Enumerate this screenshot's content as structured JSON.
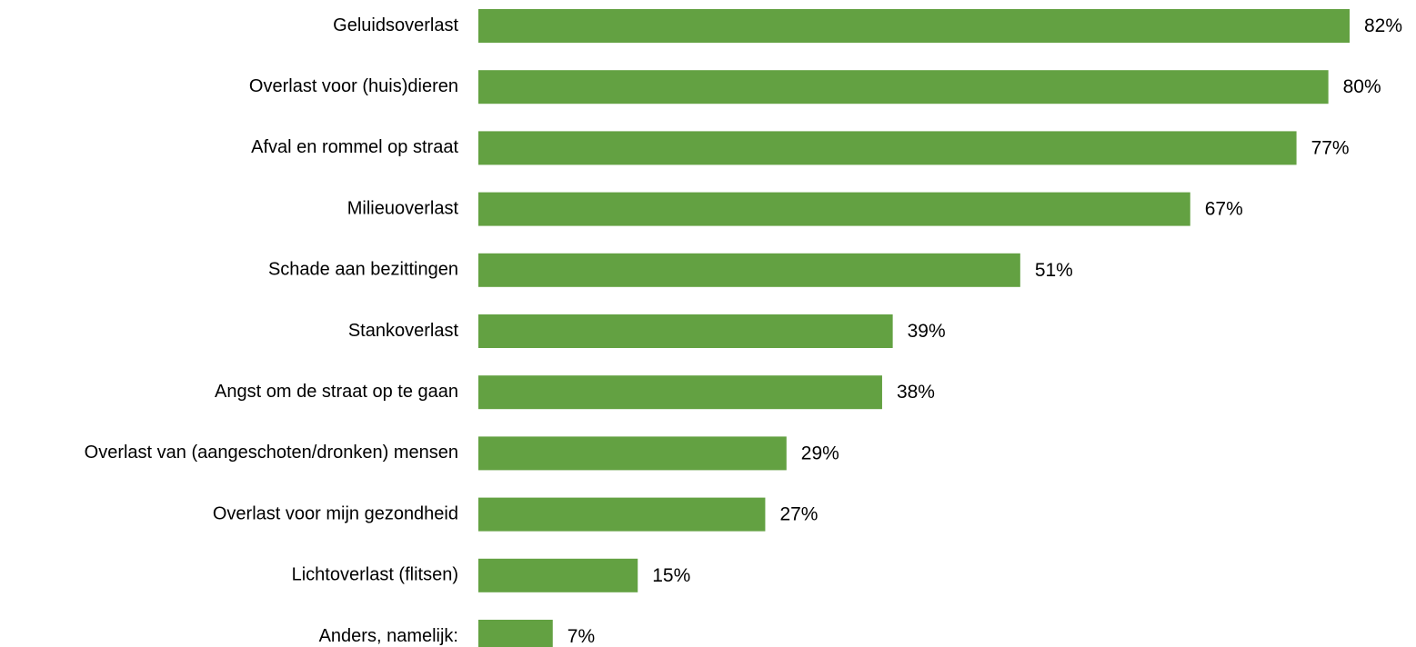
{
  "chart_data": {
    "type": "bar",
    "orientation": "horizontal",
    "title": "",
    "xlabel": "",
    "ylabel": "",
    "xlim": [
      0,
      82
    ],
    "grid": false,
    "legend": "none",
    "bar_color": "#63A142",
    "categories": [
      "Geluidsoverlast",
      "Overlast voor (huis)dieren",
      "Afval en rommel op straat",
      "Milieuoverlast",
      "Schade aan bezittingen",
      "Stankoverlast",
      "Angst om de straat op te gaan",
      "Overlast van (aangeschoten/dronken) mensen",
      "Overlast voor mijn gezondheid",
      "Lichtoverlast (flitsen)",
      "Anders, namelijk:"
    ],
    "values": [
      82,
      80,
      77,
      67,
      51,
      39,
      38,
      29,
      27,
      15,
      7
    ],
    "value_labels": [
      "82%",
      "80%",
      "77%",
      "67%",
      "51%",
      "39%",
      "38%",
      "29%",
      "27%",
      "15%",
      "7%"
    ]
  }
}
